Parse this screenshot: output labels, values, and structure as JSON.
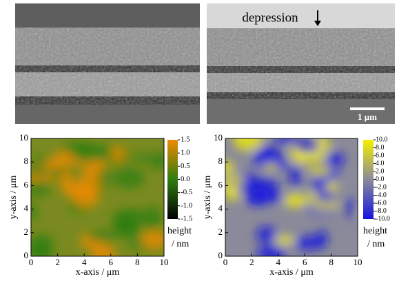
{
  "annotations": {
    "depression": "depression",
    "scale_bar": "1 μm"
  },
  "plots": [
    {
      "xlabel": "x-axis / μm",
      "ylabel": "y-axis / μm",
      "xlim": [
        0,
        10
      ],
      "ylim": [
        0,
        10
      ],
      "xticks": [
        0,
        2,
        4,
        6,
        8,
        10
      ],
      "yticks": [
        0,
        2,
        4,
        6,
        8,
        10
      ],
      "colorbar": {
        "label": [
          "height",
          "/ nm"
        ],
        "lim": [
          -1.5,
          1.5
        ],
        "colors": [
          "#000000",
          "#2f7d10",
          "#f08a00"
        ],
        "ticks": [
          1.5,
          {
            "value": 1,
            "label": "1.0"
          },
          0.5,
          {
            "value": 0,
            "label": "0.0"
          },
          -0.5,
          {
            "value": -1,
            "label": "-1.0"
          },
          -1.5
        ]
      }
    },
    {
      "xlabel": "x-axis / μm",
      "ylabel": "y-axis / μm",
      "xlim": [
        0,
        10
      ],
      "ylim": [
        0,
        10
      ],
      "xticks": [
        0,
        2,
        4,
        6,
        8,
        10
      ],
      "yticks": [
        0,
        2,
        4,
        6,
        8,
        10
      ],
      "colorbar": {
        "label": [
          "height",
          "/ nm"
        ],
        "lim": [
          -10,
          10
        ],
        "colors": [
          "#1414e0",
          "#8a8a9a",
          "#f5f000"
        ],
        "ticks": [
          {
            "value": 10,
            "label": "10.0"
          },
          {
            "value": 8,
            "label": "8.0"
          },
          {
            "value": 6,
            "label": "6.0"
          },
          {
            "value": 4,
            "label": "4.0"
          },
          {
            "value": 2,
            "label": "2.0"
          },
          {
            "value": 0,
            "label": "0.0"
          },
          {
            "value": -2,
            "label": "-2.0"
          },
          {
            "value": -4,
            "label": "-4.0"
          },
          {
            "value": -6,
            "label": "-6.0"
          },
          {
            "value": -8,
            "label": "-8.0"
          },
          {
            "value": -10,
            "label": "-10.0"
          }
        ]
      }
    }
  ]
}
